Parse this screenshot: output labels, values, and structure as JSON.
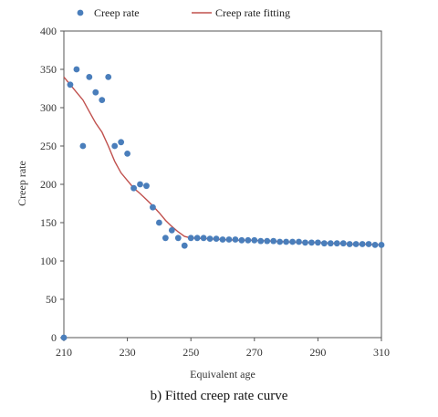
{
  "chart_data": {
    "type": "scatter",
    "title": "",
    "xlabel": "Equivalent age",
    "ylabel": "Creep rate",
    "xlim": [
      210,
      310
    ],
    "ylim": [
      0,
      400
    ],
    "xticks": [
      210,
      230,
      250,
      270,
      290,
      310
    ],
    "yticks": [
      0,
      50,
      100,
      150,
      200,
      250,
      300,
      350,
      400
    ],
    "legend_position": "top",
    "series": [
      {
        "name": "Creep rate",
        "kind": "scatter",
        "color": "#4a7ebb",
        "x": [
          210,
          212,
          214,
          216,
          218,
          220,
          222,
          224,
          226,
          228,
          230,
          232,
          234,
          236,
          238,
          240,
          242,
          244,
          246,
          248,
          250,
          252,
          254,
          256,
          258,
          260,
          262,
          264,
          266,
          268,
          270,
          272,
          274,
          276,
          278,
          280,
          282,
          284,
          286,
          288,
          290,
          292,
          294,
          296,
          298,
          300,
          302,
          304,
          306,
          308,
          310
        ],
        "y": [
          0,
          330,
          350,
          250,
          340,
          320,
          310,
          340,
          250,
          255,
          240,
          195,
          200,
          198,
          170,
          150,
          130,
          140,
          130,
          120,
          130,
          130,
          130,
          129,
          129,
          128,
          128,
          128,
          127,
          127,
          127,
          126,
          126,
          126,
          125,
          125,
          125,
          125,
          124,
          124,
          124,
          123,
          123,
          123,
          123,
          122,
          122,
          122,
          122,
          121,
          121
        ]
      },
      {
        "name": "Creep rate fitting",
        "kind": "line",
        "color": "#c0504d",
        "x": [
          210,
          212,
          214,
          216,
          218,
          220,
          222,
          224,
          226,
          228,
          230,
          232,
          234,
          236,
          238,
          240,
          242,
          244,
          246,
          248,
          250,
          255,
          260,
          265,
          270,
          275,
          280,
          285,
          290,
          295,
          300,
          305,
          310
        ],
        "y": [
          340,
          330,
          320,
          310,
          295,
          280,
          268,
          250,
          230,
          215,
          205,
          195,
          188,
          180,
          172,
          163,
          153,
          145,
          138,
          132,
          130,
          129,
          128,
          127,
          127,
          126,
          125,
          124,
          124,
          123,
          122,
          122,
          121
        ]
      }
    ],
    "caption": "b) Fitted creep rate curve"
  }
}
